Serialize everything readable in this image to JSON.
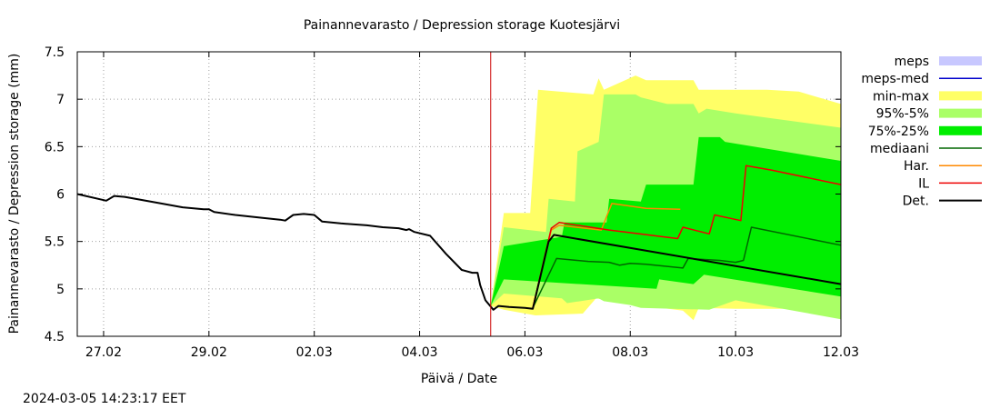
{
  "chart_data": {
    "type": "line",
    "title": "Painannevarasto / Depression storage   Kuotesjärvi",
    "xlabel": "Päivä / Date",
    "ylabel": "Painannevarasto / Depression storage (mm)",
    "timestamp": "2024-03-05 14:23:17 EET",
    "x_unit": "days since 2024-02-26 00:00",
    "xlim": [
      0.5,
      15.0
    ],
    "ylim": [
      4.5,
      7.5
    ],
    "y_ticks": [
      4.5,
      5,
      5.5,
      6,
      6.5,
      7,
      7.5
    ],
    "y_tick_labels": [
      "4.5",
      "5",
      "5.5",
      "6",
      "6.5",
      "7",
      "7.5"
    ],
    "x_ticks": [
      1,
      3,
      5,
      7,
      9,
      11,
      13,
      15
    ],
    "x_tick_labels": [
      "27.02",
      "29.02",
      "02.03",
      "04.03",
      "06.03",
      "08.03",
      "10.03",
      "12.03"
    ],
    "forecast_start": 8.35,
    "grid": true,
    "legend_position": "right",
    "legend": [
      {
        "name": "meps",
        "color": "#c8c8ff",
        "kind": "band"
      },
      {
        "name": "meps-med",
        "color": "#0000cc",
        "kind": "line"
      },
      {
        "name": "min-max",
        "color": "#ffff66",
        "kind": "band"
      },
      {
        "name": "95%-5%",
        "color": "#aaff66",
        "kind": "band"
      },
      {
        "name": "75%-25%",
        "color": "#00ee00",
        "kind": "band"
      },
      {
        "name": "mediaani",
        "color": "#006600",
        "kind": "line"
      },
      {
        "name": "Har.",
        "color": "#ff8800",
        "kind": "line"
      },
      {
        "name": "IL",
        "color": "#ee0000",
        "kind": "line"
      },
      {
        "name": "Det.",
        "color": "#000000",
        "kind": "line"
      }
    ],
    "bands": [
      {
        "name": "min-max",
        "color": "#ffff66",
        "upper": [
          [
            8.35,
            4.82
          ],
          [
            8.6,
            5.8
          ],
          [
            9.1,
            5.8
          ],
          [
            9.25,
            7.1
          ],
          [
            10.3,
            7.05
          ],
          [
            10.4,
            7.22
          ],
          [
            10.5,
            7.1
          ],
          [
            11.1,
            7.25
          ],
          [
            11.3,
            7.2
          ],
          [
            12.2,
            7.2
          ],
          [
            12.3,
            7.1
          ],
          [
            13.0,
            7.1
          ],
          [
            13.6,
            7.1
          ],
          [
            14.2,
            7.08
          ],
          [
            15.0,
            6.95
          ]
        ],
        "lower": [
          [
            8.35,
            4.82
          ],
          [
            8.6,
            4.78
          ],
          [
            9.2,
            4.72
          ],
          [
            10.1,
            4.74
          ],
          [
            10.35,
            4.9
          ],
          [
            11.0,
            4.84
          ],
          [
            12.0,
            4.77
          ],
          [
            12.2,
            4.67
          ],
          [
            12.3,
            4.8
          ],
          [
            13.0,
            4.79
          ],
          [
            15.0,
            4.79
          ]
        ]
      },
      {
        "name": "95%-5%",
        "color": "#aaff66",
        "upper": [
          [
            8.35,
            4.82
          ],
          [
            8.6,
            5.65
          ],
          [
            9.4,
            5.6
          ],
          [
            9.45,
            5.95
          ],
          [
            9.95,
            5.92
          ],
          [
            10.0,
            6.45
          ],
          [
            10.4,
            6.55
          ],
          [
            10.5,
            7.05
          ],
          [
            11.1,
            7.05
          ],
          [
            11.2,
            7.02
          ],
          [
            11.7,
            6.95
          ],
          [
            12.2,
            6.95
          ],
          [
            12.3,
            6.85
          ],
          [
            12.45,
            6.9
          ],
          [
            13.0,
            6.85
          ],
          [
            15.0,
            6.7
          ]
        ],
        "lower": [
          [
            8.35,
            4.82
          ],
          [
            8.6,
            4.95
          ],
          [
            9.7,
            4.9
          ],
          [
            9.8,
            4.85
          ],
          [
            10.4,
            4.9
          ],
          [
            10.5,
            4.87
          ],
          [
            11.0,
            4.83
          ],
          [
            11.2,
            4.8
          ],
          [
            12.5,
            4.78
          ],
          [
            13.0,
            4.88
          ],
          [
            15.0,
            4.68
          ]
        ]
      },
      {
        "name": "75%-25%",
        "color": "#00ee00",
        "upper": [
          [
            8.35,
            4.82
          ],
          [
            8.6,
            5.45
          ],
          [
            9.7,
            5.55
          ],
          [
            9.75,
            5.7
          ],
          [
            10.55,
            5.7
          ],
          [
            10.6,
            5.95
          ],
          [
            11.2,
            5.92
          ],
          [
            11.3,
            6.1
          ],
          [
            12.2,
            6.1
          ],
          [
            12.3,
            6.6
          ],
          [
            12.7,
            6.6
          ],
          [
            12.8,
            6.55
          ],
          [
            15.0,
            6.35
          ]
        ],
        "lower": [
          [
            8.35,
            4.82
          ],
          [
            8.6,
            5.1
          ],
          [
            11.5,
            5.0
          ],
          [
            11.55,
            5.1
          ],
          [
            12.2,
            5.05
          ],
          [
            12.4,
            5.15
          ],
          [
            15.0,
            4.92
          ]
        ]
      }
    ],
    "series": [
      {
        "name": "Det.",
        "color": "#000000",
        "width": 2,
        "points": [
          [
            0.5,
            6.0
          ],
          [
            1.05,
            5.93
          ],
          [
            1.2,
            5.98
          ],
          [
            1.4,
            5.97
          ],
          [
            2.0,
            5.91
          ],
          [
            2.5,
            5.86
          ],
          [
            2.9,
            5.84
          ],
          [
            3.0,
            5.84
          ],
          [
            3.1,
            5.81
          ],
          [
            3.5,
            5.78
          ],
          [
            4.0,
            5.75
          ],
          [
            4.35,
            5.73
          ],
          [
            4.45,
            5.72
          ],
          [
            4.6,
            5.78
          ],
          [
            4.8,
            5.79
          ],
          [
            5.0,
            5.78
          ],
          [
            5.15,
            5.71
          ],
          [
            5.5,
            5.69
          ],
          [
            6.0,
            5.67
          ],
          [
            6.3,
            5.65
          ],
          [
            6.6,
            5.64
          ],
          [
            6.75,
            5.62
          ],
          [
            6.8,
            5.63
          ],
          [
            6.9,
            5.6
          ],
          [
            7.2,
            5.56
          ],
          [
            7.5,
            5.37
          ],
          [
            7.8,
            5.2
          ],
          [
            8.0,
            5.17
          ],
          [
            8.1,
            5.17
          ],
          [
            8.15,
            5.04
          ],
          [
            8.25,
            4.88
          ],
          [
            8.4,
            4.78
          ],
          [
            8.5,
            4.82
          ],
          [
            8.7,
            4.81
          ],
          [
            9.0,
            4.8
          ],
          [
            9.15,
            4.79
          ],
          [
            9.45,
            5.5
          ],
          [
            9.55,
            5.57
          ],
          [
            15.0,
            5.05
          ]
        ]
      },
      {
        "name": "mediaani",
        "color": "#006600",
        "width": 1.5,
        "points": [
          [
            9.15,
            4.8
          ],
          [
            9.6,
            5.32
          ],
          [
            10.2,
            5.29
          ],
          [
            10.6,
            5.28
          ],
          [
            10.8,
            5.25
          ],
          [
            11.0,
            5.27
          ],
          [
            11.3,
            5.26
          ],
          [
            12.0,
            5.22
          ],
          [
            12.1,
            5.32
          ],
          [
            12.7,
            5.3
          ],
          [
            13.0,
            5.28
          ],
          [
            13.15,
            5.3
          ],
          [
            13.3,
            5.65
          ],
          [
            15.0,
            5.46
          ]
        ]
      },
      {
        "name": "IL",
        "color": "#ee0000",
        "width": 1.5,
        "points": [
          [
            9.15,
            4.8
          ],
          [
            9.5,
            5.64
          ],
          [
            9.65,
            5.7
          ],
          [
            10.6,
            5.62
          ],
          [
            11.9,
            5.53
          ],
          [
            12.0,
            5.65
          ],
          [
            12.5,
            5.58
          ],
          [
            12.6,
            5.78
          ],
          [
            13.1,
            5.72
          ],
          [
            13.2,
            6.3
          ],
          [
            13.7,
            6.25
          ],
          [
            15.0,
            6.1
          ]
        ]
      },
      {
        "name": "Har.",
        "color": "#ff8800",
        "width": 1.5,
        "points": [
          [
            9.15,
            4.8
          ],
          [
            9.5,
            5.62
          ],
          [
            9.65,
            5.67
          ],
          [
            10.45,
            5.62
          ],
          [
            10.65,
            5.9
          ],
          [
            11.3,
            5.85
          ],
          [
            11.95,
            5.84
          ]
        ]
      }
    ]
  }
}
